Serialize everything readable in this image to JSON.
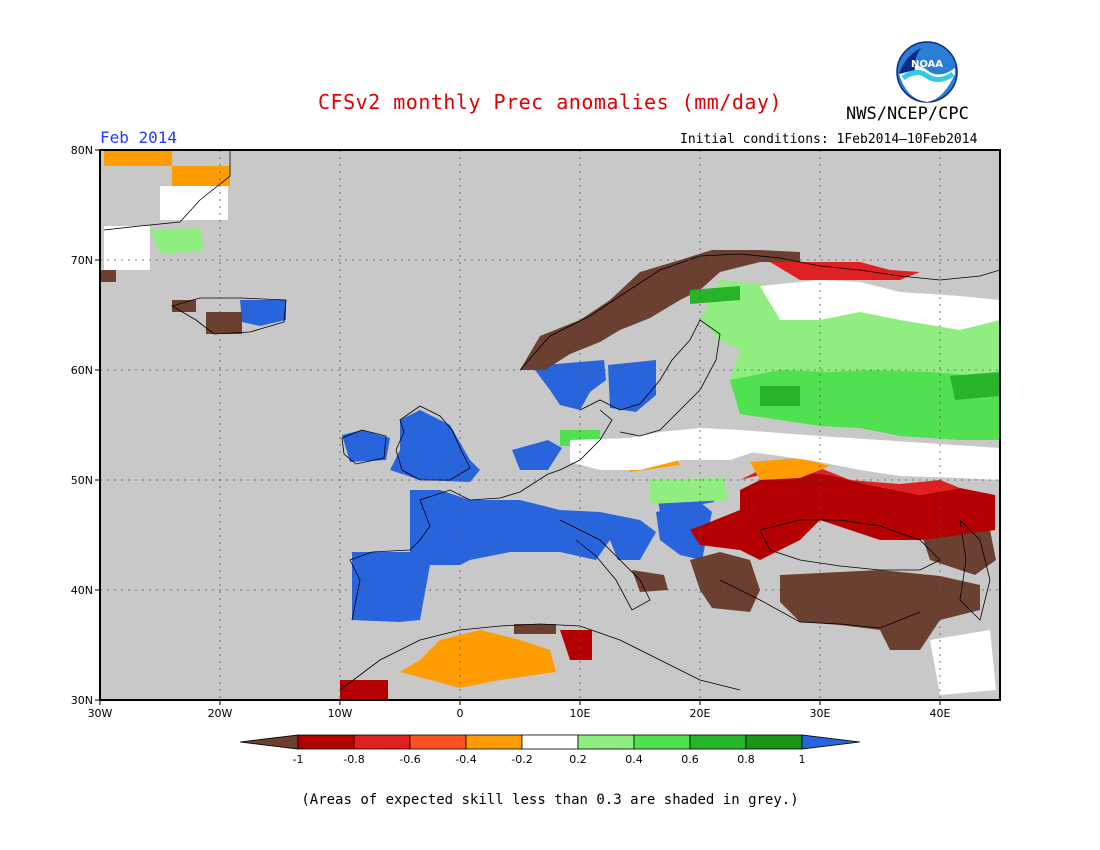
{
  "header": {
    "title": "CFSv2 monthly Prec anomalies (mm/day)",
    "agency": "NWS/NCEP/CPC",
    "logo_text": "NOAA",
    "period": "Feb 2014",
    "initial_conditions": "Initial conditions: 1Feb2014—10Feb2014"
  },
  "map": {
    "region": "Europe",
    "lon_range": [
      -30,
      45
    ],
    "lat_range": [
      30,
      80
    ],
    "lat_labels": [
      "80N",
      "70N",
      "60N",
      "50N",
      "40N",
      "30N"
    ],
    "lon_labels": [
      "30W",
      "20W",
      "10W",
      "0",
      "10E",
      "20E",
      "30E",
      "40E"
    ],
    "mask_color": "#c8c8c8",
    "anomaly_fields": [
      {
        "region": "Iberia / France / Italy",
        "lon": [
          -9,
          20
        ],
        "lat": [
          37,
          50
        ],
        "class": ">1"
      },
      {
        "region": "British Isles",
        "lon": [
          -10,
          2
        ],
        "lat": [
          50,
          56
        ],
        "class": ">1"
      },
      {
        "region": "Southern Scandinavia",
        "lon": [
          5,
          18
        ],
        "lat": [
          57,
          62
        ],
        "class": ">1"
      },
      {
        "region": "Norwegian coast",
        "lon": [
          5,
          30
        ],
        "lat": [
          62,
          71
        ],
        "class": "<-1"
      },
      {
        "region": "Northern Russia",
        "lon": [
          20,
          45
        ],
        "lat": [
          53,
          67
        ],
        "class": "0.2 to 0.6"
      },
      {
        "region": "Ukraine / Black Sea",
        "lon": [
          22,
          45
        ],
        "lat": [
          43,
          50
        ],
        "class": "-1 to -0.6"
      },
      {
        "region": "Balkans / Turkey",
        "lon": [
          20,
          45
        ],
        "lat": [
          36,
          43
        ],
        "class": "<-1"
      },
      {
        "region": "North Africa",
        "lon": [
          -5,
          10
        ],
        "lat": [
          31,
          36
        ],
        "class": "-0.4 to -0.2"
      }
    ]
  },
  "legend": {
    "tick_labels": [
      "-1",
      "-0.8",
      "-0.6",
      "-0.4",
      "-0.2",
      "0.2",
      "0.4",
      "0.6",
      "0.8",
      "1"
    ],
    "colors": [
      "#6b4030",
      "#b40000",
      "#e02020",
      "#ff5020",
      "#ff9c00",
      "#ffffff",
      "#90ee80",
      "#50e050",
      "#28b428",
      "#189618",
      "#2864dc"
    ]
  },
  "footnote": "(Areas of expected skill less than 0.3 are shaded in grey.)"
}
